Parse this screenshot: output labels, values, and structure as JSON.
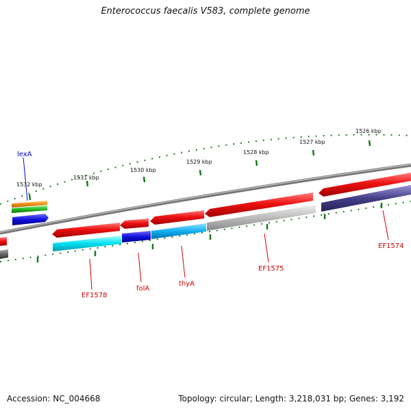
{
  "title": "Enterococcus faecalis V583, complete genome",
  "footer": {
    "accession": "Accession: NC_004668",
    "summary": "Topology: circular; Length: 3,218,031 bp; Genes: 3,192"
  },
  "ruler": {
    "labels": [
      "1532 kbp",
      "1531 kbp",
      "1530 kbp",
      "1529 kbp",
      "1528 kbp",
      "1527 kbp",
      "1526 kbp"
    ]
  },
  "gene_labels": {
    "lexA": "lexA",
    "EF1578": "EF1578",
    "folA": "folA",
    "thyA": "thyA",
    "EF1575": "EF1575",
    "EF1574": "EF1574"
  },
  "colors": {
    "backbone": "#808080",
    "tick": "#1a7a1a",
    "label_blue": "#0000cc",
    "label_red": "#cc0000",
    "red": "#ee1111",
    "cyan": "#00e0f0",
    "blue": "#1010dd",
    "sky": "#10b0f0",
    "grey": "#b8b8b8",
    "navy": "#443f88",
    "orange": "#f09010",
    "green": "#22bb22"
  }
}
